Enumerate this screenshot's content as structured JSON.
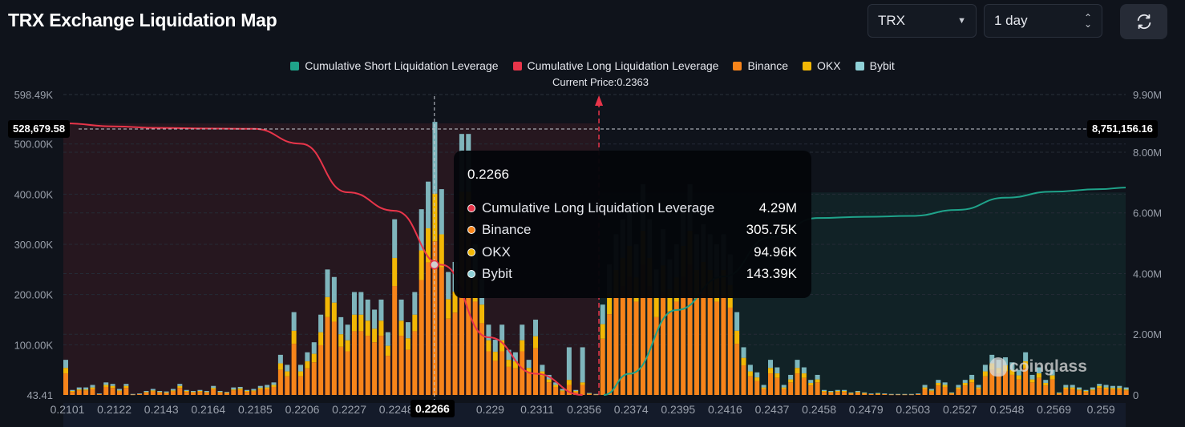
{
  "header": {
    "title": "TRX Exchange Liquidation Map",
    "symbol_select": "TRX",
    "period_select": "1 day",
    "refresh_icon": "refresh-icon"
  },
  "colors": {
    "short_line": "#1fa38a",
    "long_line": "#e8354a",
    "binance": "#f7841a",
    "okx": "#f2b705",
    "bybit": "#8fd1d8",
    "background": "#0f131b"
  },
  "chart_data": {
    "type": "bar",
    "title": "",
    "current_price_label": "Current Price:0.2363",
    "legend": [
      {
        "name": "Cumulative Short Liquidation Leverage",
        "color": "#1fa38a"
      },
      {
        "name": "Cumulative Long Liquidation Leverage",
        "color": "#e8354a"
      },
      {
        "name": "Binance",
        "color": "#f7841a"
      },
      {
        "name": "OKX",
        "color": "#f2b705"
      },
      {
        "name": "Bybit",
        "color": "#8fd1d8"
      }
    ],
    "legend_position": "top-center",
    "x_tick_labels": [
      "0.2101",
      "0.2122",
      "0.2143",
      "0.2164",
      "0.2185",
      "0.2206",
      "0.2227",
      "0.2248",
      "",
      "0.229",
      "0.2311",
      "0.2356",
      "0.2374",
      "0.2395",
      "0.2416",
      "0.2437",
      "0.2458",
      "0.2479",
      "0.2503",
      "0.2527",
      "0.2548",
      "0.2569",
      "0.259"
    ],
    "left_axis": {
      "ticks": [
        "598.49K",
        "500.00K",
        "400.00K",
        "300.00K",
        "200.00K",
        "100.00K",
        "43.41"
      ],
      "tick_values_k": [
        598.49,
        500,
        400,
        300,
        200,
        100,
        0
      ],
      "range_k": [
        0,
        598.49
      ]
    },
    "right_axis": {
      "ticks": [
        "9.90M",
        "8.00M",
        "6.00M",
        "4.00M",
        "2.00M",
        "0"
      ],
      "tick_values_m": [
        9.9,
        8,
        6,
        4,
        2,
        0
      ],
      "range_m": [
        0,
        9.9
      ]
    },
    "grid": true,
    "bars_unit": "K",
    "series": [
      {
        "name": "Binance",
        "values": [
          43,
          6,
          9,
          9,
          12,
          2,
          16,
          14,
          7,
          14,
          1,
          2,
          5,
          7,
          5,
          4,
          7,
          14,
          6,
          5,
          6,
          5,
          11,
          5,
          4,
          9,
          10,
          6,
          7,
          11,
          12,
          16,
          50,
          37,
          102,
          37,
          53,
          65,
          99,
          155,
          146,
          96,
          87,
          127,
          127,
          118,
          105,
          118,
          78,
          217,
          118,
          90,
          127,
          229,
          264,
          306,
          254,
          152,
          164,
          322,
          322,
          186,
          143,
          87,
          68,
          87,
          56,
          53,
          87,
          43,
          93,
          37,
          25,
          16,
          7,
          20,
          6,
          20,
          2,
          1,
          112,
          161,
          198,
          217,
          236,
          186,
          260,
          217,
          155,
          205,
          167,
          186,
          236,
          260,
          198,
          211,
          198,
          186,
          198,
          174,
          102,
          59,
          37,
          28,
          12,
          43,
          34,
          12,
          25,
          43,
          34,
          19,
          25,
          6,
          5,
          6,
          6,
          3,
          5,
          3,
          2,
          2,
          2,
          1,
          1,
          1,
          1,
          2,
          12,
          7,
          19,
          16,
          3,
          12,
          19,
          25,
          12,
          37,
          50,
          43,
          47,
          40,
          31,
          53,
          25,
          34,
          19,
          31,
          3,
          12,
          12,
          9,
          6,
          9,
          14,
          12,
          11,
          11,
          9
        ]
      },
      {
        "name": "OKX",
        "values": [
          11,
          2,
          2,
          2,
          3,
          0,
          4,
          4,
          2,
          4,
          0,
          0,
          1,
          2,
          1,
          1,
          2,
          4,
          2,
          1,
          2,
          1,
          3,
          1,
          1,
          2,
          3,
          2,
          2,
          3,
          3,
          4,
          13,
          10,
          26,
          10,
          14,
          17,
          26,
          40,
          38,
          25,
          22,
          33,
          33,
          30,
          27,
          30,
          20,
          56,
          30,
          23,
          33,
          59,
          68,
          95,
          66,
          39,
          42,
          83,
          83,
          48,
          37,
          22,
          18,
          22,
          14,
          14,
          22,
          11,
          24,
          10,
          6,
          4,
          2,
          10,
          2,
          5,
          1,
          0,
          29,
          42,
          51,
          56,
          61,
          48,
          67,
          56,
          40,
          53,
          43,
          48,
          61,
          67,
          51,
          54,
          51,
          48,
          51,
          45,
          26,
          15,
          10,
          7,
          3,
          11,
          9,
          3,
          6,
          11,
          9,
          5,
          6,
          2,
          1,
          2,
          2,
          1,
          1,
          1,
          0,
          1,
          0,
          0,
          0,
          0,
          0,
          0,
          3,
          2,
          5,
          4,
          1,
          3,
          5,
          6,
          3,
          10,
          13,
          11,
          12,
          10,
          8,
          14,
          6,
          9,
          5,
          8,
          1,
          3,
          3,
          2,
          2,
          2,
          4,
          3,
          3,
          3,
          2
        ]
      },
      {
        "name": "Bybit",
        "values": [
          16,
          2,
          4,
          4,
          5,
          1,
          5,
          4,
          3,
          4,
          1,
          1,
          2,
          3,
          2,
          2,
          3,
          4,
          2,
          2,
          2,
          2,
          4,
          2,
          1,
          4,
          3,
          2,
          3,
          4,
          5,
          5,
          17,
          13,
          37,
          13,
          18,
          23,
          35,
          55,
          51,
          34,
          31,
          45,
          45,
          42,
          38,
          42,
          27,
          77,
          42,
          32,
          45,
          82,
          93,
          143,
          90,
          54,
          59,
          115,
          115,
          66,
          50,
          31,
          24,
          31,
          20,
          18,
          31,
          16,
          33,
          13,
          9,
          5,
          3,
          65,
          2,
          70,
          1,
          1,
          39,
          57,
          71,
          77,
          83,
          66,
          93,
          77,
          55,
          72,
          60,
          66,
          83,
          93,
          71,
          75,
          71,
          66,
          71,
          61,
          37,
          21,
          13,
          10,
          5,
          16,
          12,
          5,
          9,
          16,
          12,
          6,
          9,
          2,
          2,
          2,
          2,
          1,
          2,
          1,
          1,
          1,
          1,
          1,
          1,
          1,
          1,
          1,
          5,
          3,
          6,
          5,
          1,
          5,
          6,
          9,
          5,
          13,
          17,
          16,
          16,
          15,
          11,
          18,
          9,
          12,
          6,
          11,
          1,
          5,
          5,
          4,
          2,
          4,
          4,
          5,
          4,
          4,
          4
        ]
      }
    ],
    "lines_unit": "M",
    "cumulative_long_at_ticks": [
      8.95,
      8.85,
      8.8,
      8.78,
      8.77,
      8.28,
      6.68,
      6.07,
      4.29,
      1.9,
      0.7,
      0.0,
      null,
      null,
      null,
      null,
      null,
      null,
      null,
      null,
      null,
      null,
      null
    ],
    "cumulative_short_at_ticks": [
      null,
      null,
      null,
      null,
      null,
      null,
      null,
      null,
      null,
      null,
      null,
      0.0,
      0.7,
      2.8,
      3.9,
      5.2,
      5.83,
      5.87,
      5.9,
      6.1,
      6.5,
      6.7,
      6.78
    ],
    "current_price_tick_position": 11.4,
    "crosshair": {
      "x_label": "0.2266",
      "left_value": "528,679.58",
      "right_value": "8,751,156.16"
    },
    "tooltip": {
      "title": "0.2266",
      "rows": [
        {
          "label": "Cumulative Long Liquidation Leverage",
          "value": "4.29M",
          "color": "#e8354a"
        },
        {
          "label": "Binance",
          "value": "305.75K",
          "color": "#f7841a"
        },
        {
          "label": "OKX",
          "value": "94.96K",
          "color": "#f2b705"
        },
        {
          "label": "Bybit",
          "value": "143.39K",
          "color": "#8fd1d8"
        }
      ]
    },
    "watermark": "coinglass"
  }
}
